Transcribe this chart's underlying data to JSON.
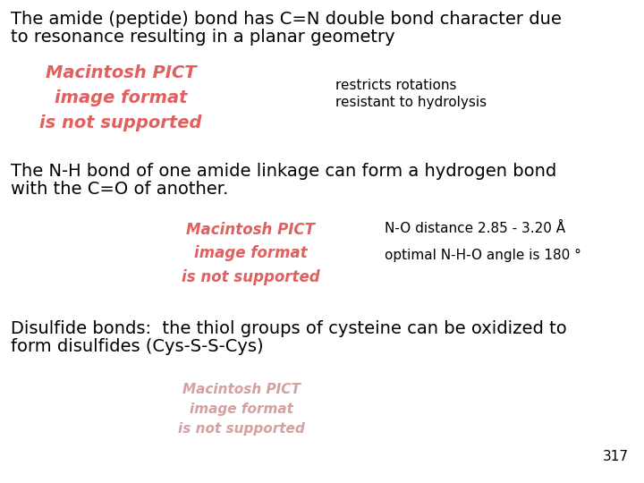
{
  "bg_color": "#ffffff",
  "title_text1": "The amide (peptide) bond has C=N double bond character due",
  "title_text2": "to resonance resulting in a planar geometry",
  "pict_placeholder1": "Macintosh PICT\nimage format\nis not supported",
  "pict_placeholder2": "Macintosh PICT\nimage format\nis not supported",
  "pict_placeholder3": "Macintosh PICT\nimage format\nis not supported",
  "pict_color1": "#e06060",
  "pict_color2": "#e06060",
  "pict_color3": "#d4a0a0",
  "bullet1_line1": "restricts rotations",
  "bullet1_line2": "resistant to hydrolysis",
  "section2_text1": "The N-H bond of one amide linkage can form a hydrogen bond",
  "section2_text2": "with the C=O of another.",
  "bullet2_line1": "N-O distance 2.85 - 3.20 Å",
  "bullet2_line2": "optimal N-H-O angle is 180 °",
  "section3_text1": "Disulfide bonds:  the thiol groups of cysteine can be oxidized to",
  "section3_text2": "form disulfides (Cys-S-S-Cys)",
  "page_number": "317",
  "main_font_size": 14,
  "small_font_size": 11,
  "pict_font_size1": 14,
  "pict_font_size2": 12,
  "pict_font_size3": 11
}
